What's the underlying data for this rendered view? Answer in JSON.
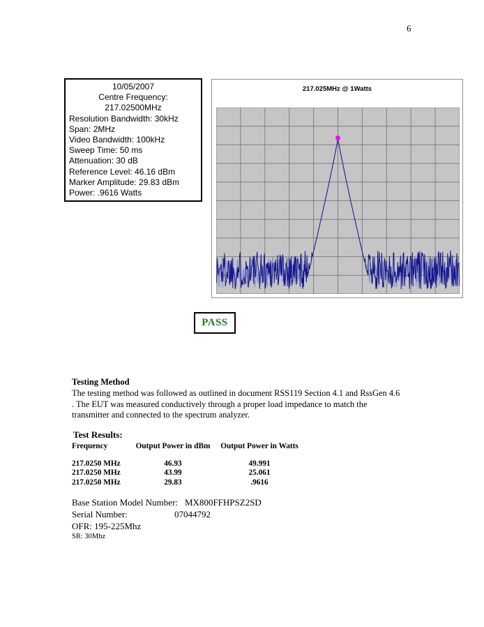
{
  "page": {
    "number": "6"
  },
  "info_box": {
    "lines": [
      "10/05/2007",
      "Centre Frequency:",
      "217.02500MHz",
      "Resolution Bandwidth: 30kHz",
      "Span: 2MHz",
      "Video Bandwidth: 100kHz",
      "Sweep Time: 50 ms",
      "Attenuation: 30 dB",
      "Reference Level: 46.16 dBm",
      "Marker Amplitude: 29.83 dBm",
      "Power: .9616 Watts"
    ]
  },
  "chart_data": {
    "type": "line",
    "title": "217.025MHz @ 1Watts",
    "x_axis": {
      "center_mhz": 217.025,
      "span_mhz": 2.0,
      "divisions": 10,
      "mhz_per_division": 0.2
    },
    "y_axis": {
      "ref_level_dbm": 46.16,
      "db_per_division": 10,
      "divisions": 10
    },
    "series": [
      {
        "name": "spectrum trace",
        "peak_freq_mhz": 217.025,
        "peak_amplitude_dbm": 29.83,
        "noise_floor_mean_dbm": -41,
        "noise_spread_db": 21,
        "skirt_slope_db_per_division": 61
      }
    ],
    "marker": {
      "freq_mhz": 217.025,
      "amplitude_dbm": 29.83
    },
    "grid": true,
    "legend": false,
    "colors": {
      "plot_bg": "#c5c5c5",
      "grid": "#7f7f7f",
      "trace_dark": "#16168c",
      "trace_light": "#8891c9",
      "marker": "#ff00f0"
    }
  },
  "result": {
    "pass_label": "PASS",
    "pass_color": "#1e7c1e"
  },
  "testing_method": {
    "heading": "Testing Method",
    "body": "The testing method was followed as outlined in document RSS119 Section 4.1 and RssGen 4.6 . The EUT was measured conductively through a proper load impedance to match the transmitter and connected to the spectrum analyzer."
  },
  "test_results": {
    "heading": "Test Results:",
    "columns": [
      "Frequency",
      "Output Power in dBm",
      "Output Power in Watts"
    ],
    "rows": [
      [
        "217.0250 MHz",
        "46.93",
        "49.991"
      ],
      [
        "217.0250 MHz",
        "43.99",
        "25.061"
      ],
      [
        "217.0250 MHz",
        "29.83",
        ".9616"
      ]
    ]
  },
  "device": {
    "model_label": "Base Station Model Number:",
    "model_value": "MX800FFHPSZ2SD",
    "serial_label": "Serial Number:",
    "serial_value": "07044792",
    "ofr_line": "OFR: 195-225Mhz",
    "sr_line": "SR: 30Mhz"
  }
}
